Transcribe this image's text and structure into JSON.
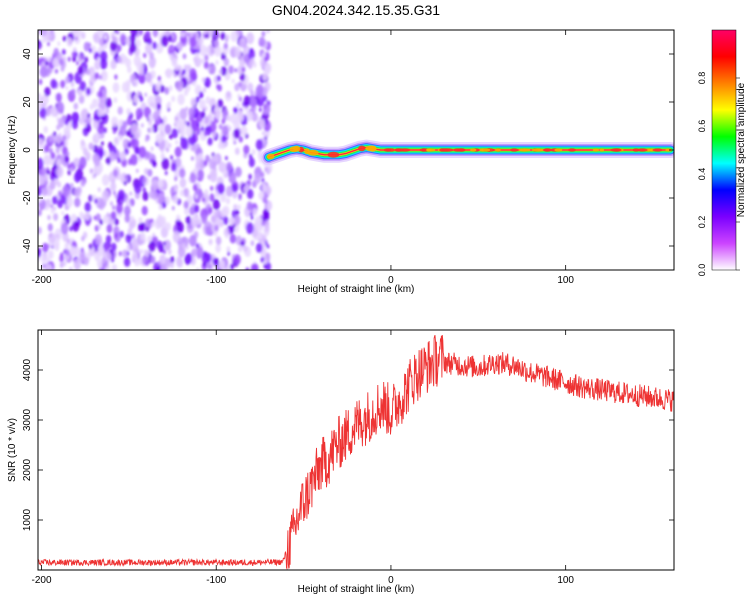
{
  "title": "GN04.2024.342.15.35.G31",
  "chart_data": [
    {
      "type": "heatmap",
      "xlabel": "Height of straight line (km)",
      "ylabel": "Frequency (Hz)",
      "xlim": [
        -202,
        162
      ],
      "ylim": [
        -50,
        50
      ],
      "x_ticks": [
        -200,
        -100,
        0,
        100
      ],
      "y_ticks": [
        -40,
        -20,
        0,
        20,
        40
      ],
      "noise_region_x": [
        -202,
        -70
      ],
      "signal_track": {
        "x": [
          -70,
          -66,
          -62,
          -58,
          -54,
          -50,
          -46,
          -42,
          -38,
          -34,
          -30,
          -26,
          -22,
          -18,
          -14,
          -10,
          -6,
          0,
          20,
          40,
          60,
          80,
          100,
          120,
          140,
          160
        ],
        "frequency": [
          -3,
          -2,
          -1,
          0,
          0.5,
          0,
          -1,
          -1.5,
          -2,
          -2,
          -2,
          -1.5,
          -0.5,
          0.5,
          1,
          0.5,
          0,
          0,
          0,
          0,
          0,
          0,
          0,
          0,
          0,
          0
        ]
      },
      "colorbar": {
        "label": "Normalized spectral amplitude",
        "range": [
          0,
          1
        ],
        "ticks": [
          "0.0",
          "0.2",
          "0.4",
          "0.6",
          "0.8"
        ],
        "colors": [
          "#ffffff",
          "#cc44ff",
          "#7a00ff",
          "#0000ff",
          "#00ffff",
          "#00ff00",
          "#ffff00",
          "#ff8000",
          "#ff0000",
          "#ff0066"
        ]
      }
    },
    {
      "type": "line",
      "xlabel": "Height of straight line (km)",
      "ylabel": "SNR (10 * v/v)",
      "xlim": [
        -202,
        162
      ],
      "ylim": [
        0,
        4800
      ],
      "x_ticks": [
        -200,
        -100,
        0,
        100
      ],
      "y_ticks": [
        1000,
        2000,
        3000,
        4000
      ],
      "line_color": "#ee3333",
      "series": [
        {
          "x": [
            -202,
            -180,
            -160,
            -140,
            -120,
            -100,
            -80,
            -62,
            -56,
            -52,
            -48,
            -44,
            -40,
            -36,
            -32,
            -28,
            -24,
            -20,
            -16,
            -12,
            -8,
            -4,
            0,
            4,
            8,
            12,
            16,
            20,
            24,
            28,
            32,
            40,
            50,
            60,
            70,
            80,
            90,
            100,
            110,
            120,
            130,
            140,
            150,
            160
          ],
          "values": [
            150,
            150,
            150,
            150,
            150,
            150,
            150,
            160,
            700,
            1200,
            1500,
            1800,
            2100,
            2200,
            2450,
            2600,
            2750,
            2900,
            3000,
            3100,
            3250,
            3300,
            3150,
            3350,
            3550,
            3800,
            3950,
            4050,
            4150,
            4250,
            4150,
            4100,
            4050,
            4150,
            4100,
            3950,
            3850,
            3750,
            3650,
            3600,
            3550,
            3500,
            3450,
            3400
          ]
        }
      ]
    }
  ]
}
